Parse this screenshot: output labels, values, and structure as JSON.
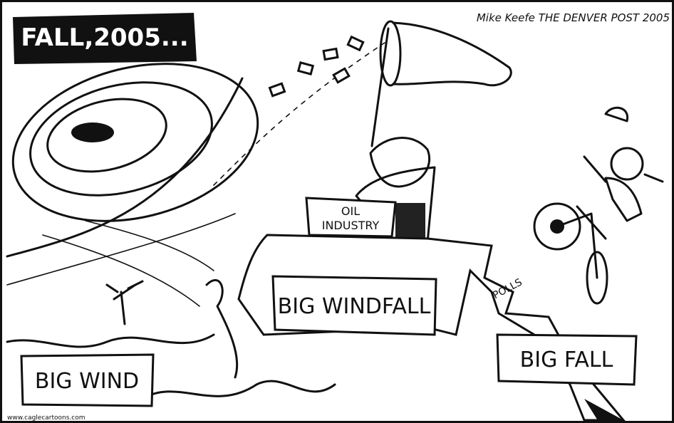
{
  "title": "FALL,2005...",
  "signature": "Mike Keefe THE DENVER POST 2005",
  "signs": {
    "oil_industry": [
      "OIL",
      "INDUSTRY"
    ],
    "big_windfall": "BIG WINDFALL",
    "polls": "POLLS",
    "big_fall": "BIG FALL",
    "big_wind": "BIG WIND"
  },
  "credit": "www.caglecartoons.com"
}
